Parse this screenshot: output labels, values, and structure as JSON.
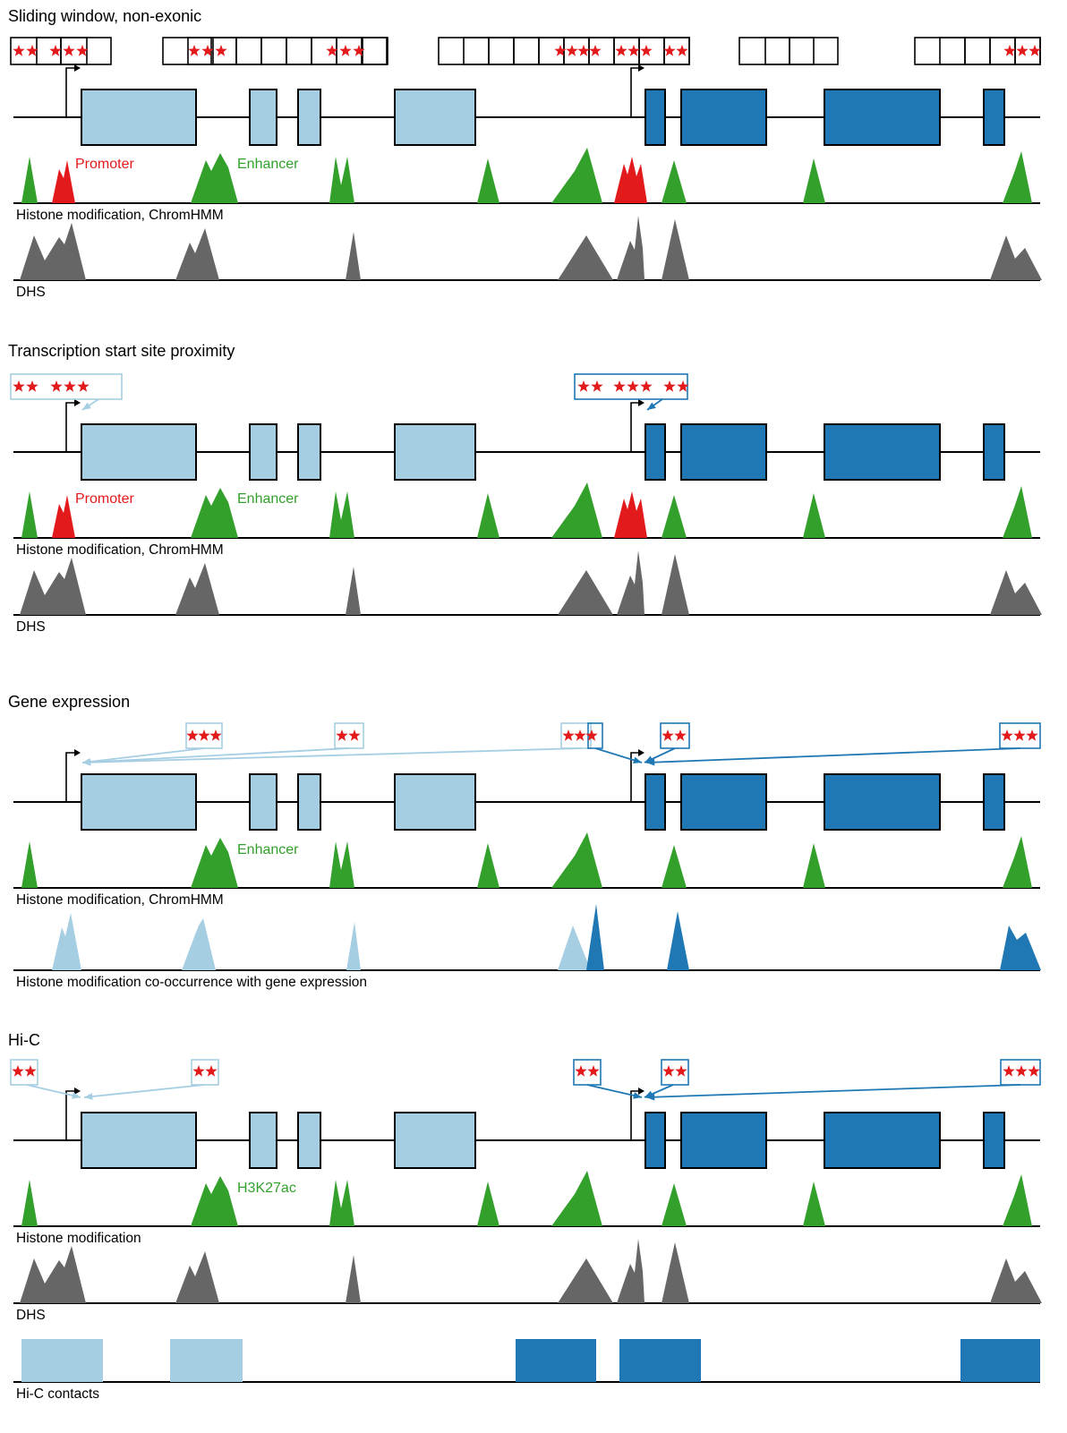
{
  "colors": {
    "gene_light": "#a6cee3",
    "gene_dark": "#1f78b4",
    "enhancer_green": "#33a02c",
    "promoter_red": "#e31a1c",
    "dhs_grey": "#666666",
    "star_red": "#e31a1c",
    "line_black": "#000000"
  },
  "panels": [
    {
      "id": "sliding-window",
      "title": "Sliding window, non-exonic",
      "histone_label": "Histone modification, ChromHMM",
      "show_promoter_label": true,
      "promoter_label": "Promoter",
      "enhancer_label": "Enhancer",
      "bottom_track": "dhs",
      "bottom_label": "DHS"
    },
    {
      "id": "tss-proximity",
      "title": "Transcription start site proximity",
      "histone_label": "Histone modification, ChromHMM",
      "show_promoter_label": true,
      "promoter_label": "Promoter",
      "enhancer_label": "Enhancer",
      "bottom_track": "dhs",
      "bottom_label": "DHS"
    },
    {
      "id": "gene-expression",
      "title": "Gene expression",
      "histone_label": "Histone modification, ChromHMM",
      "show_promoter_label": false,
      "enhancer_label": "Enhancer",
      "bottom_track": "coocc",
      "bottom_label": "Histone modification co-occurrence with gene expression"
    },
    {
      "id": "hi-c",
      "title": "Hi-C",
      "histone_label": "Histone modification",
      "show_promoter_label": false,
      "enhancer_label": "H3K27ac",
      "bottom_track": "dhs",
      "bottom_label": "DHS",
      "extra_track": "hic",
      "extra_label": "Hi-C contacts"
    }
  ]
}
